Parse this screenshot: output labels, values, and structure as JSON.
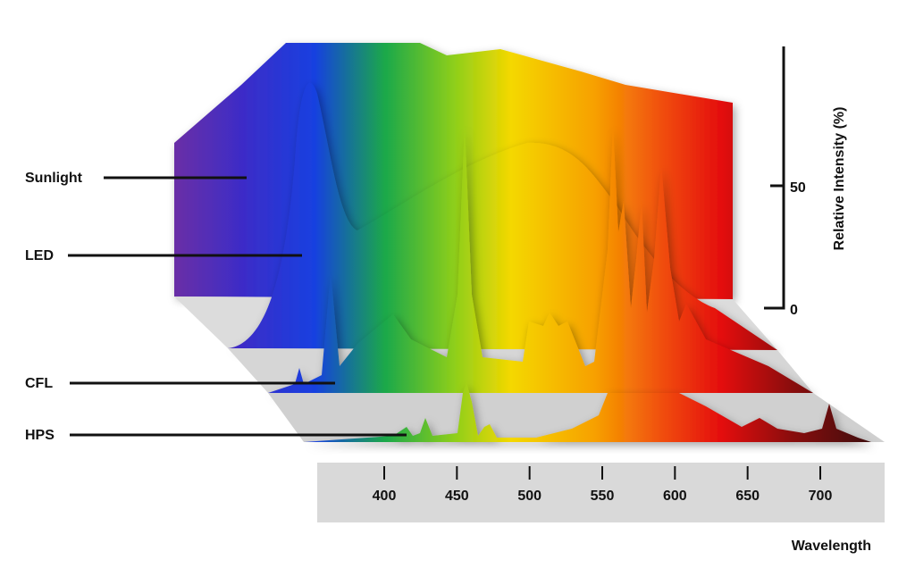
{
  "labels": [
    "Sunlight",
    "LED",
    "CFL",
    "HPS"
  ],
  "x_axis": {
    "title": "Wavelength",
    "ticks": [
      400,
      450,
      500,
      550,
      600,
      650,
      700
    ]
  },
  "y_axis": {
    "title": "Relative Intensity (%)",
    "ticks": [
      0,
      50
    ]
  }
}
